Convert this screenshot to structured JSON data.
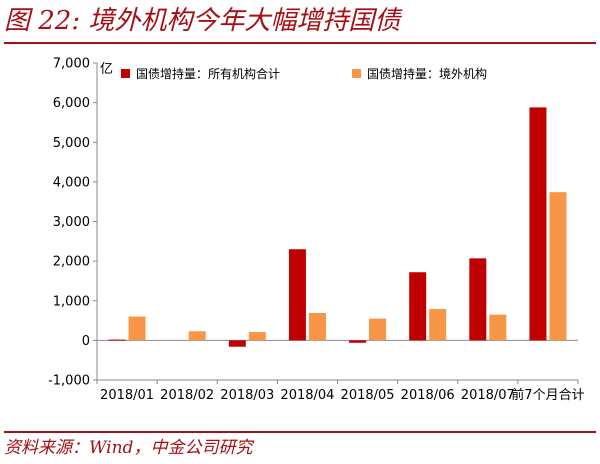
{
  "header": {
    "title": "图 22: 境外机构今年大幅增持国债"
  },
  "footer": {
    "source": "资料来源：Wind，中金公司研究"
  },
  "colors": {
    "accent": "#a50f15",
    "series_all": "#c00000",
    "series_foreign": "#f79646",
    "axis": "#888888"
  },
  "chart_data": {
    "type": "bar",
    "title": "",
    "ylabel": "亿",
    "xlabel": "",
    "ylim": [
      -1000,
      7000
    ],
    "yticks": [
      -1000,
      0,
      1000,
      2000,
      3000,
      4000,
      5000,
      6000,
      7000
    ],
    "ytick_labels": [
      "-1,000",
      "0",
      "1,000",
      "2,000",
      "3,000",
      "4,000",
      "5,000",
      "6,000",
      "7,000"
    ],
    "grid": false,
    "legend_position": "top",
    "categories": [
      "2018/01",
      "2018/02",
      "2018/03",
      "2018/04",
      "2018/05",
      "2018/06",
      "2018/07",
      "前7个月合计"
    ],
    "series": [
      {
        "name": "国债增持量：所有机构合计",
        "color": "#c00000",
        "values": [
          20,
          0,
          -160,
          2300,
          -60,
          1720,
          2070,
          5880
        ]
      },
      {
        "name": "国债增持量：境外机构",
        "color": "#f79646",
        "values": [
          600,
          230,
          210,
          690,
          550,
          790,
          650,
          3740
        ]
      }
    ]
  }
}
